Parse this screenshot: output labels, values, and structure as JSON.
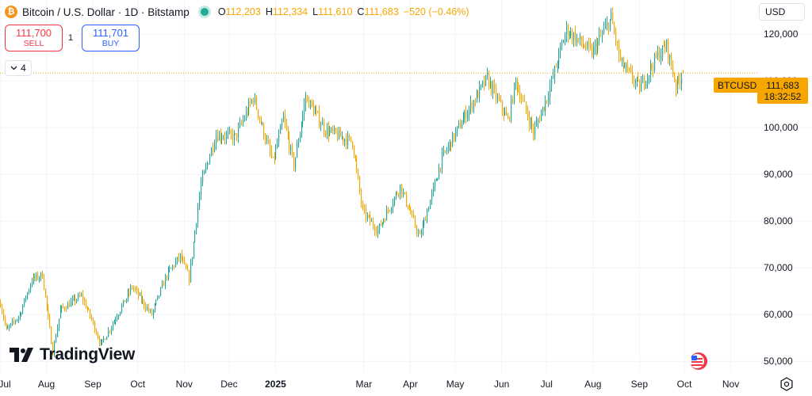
{
  "header": {
    "title": "Bitcoin / U.S. Dollar · 1D · Bitstamp",
    "ohlc": [
      {
        "key": "O",
        "value": "112,203"
      },
      {
        "key": "H",
        "value": "112,334"
      },
      {
        "key": "L",
        "value": "111,610"
      },
      {
        "key": "C",
        "value": "111,683"
      },
      {
        "key": "",
        "value": "−520 (−0.46%)"
      }
    ]
  },
  "trade": {
    "sell_price": "111,700",
    "sell_label": "SELL",
    "spread": "1",
    "buy_price": "111,701",
    "buy_label": "BUY"
  },
  "indicators_count": "4",
  "currency": "USD",
  "last_price": {
    "symbol": "BTCUSD",
    "price": "111,683",
    "countdown": "18:32:52"
  },
  "branding": {
    "logo_text": "TradingView"
  },
  "colors": {
    "up": "#26a69a",
    "down": "#f7a600",
    "accent": "#f7a600",
    "buy": "#2962ff",
    "sell": "#f23645"
  },
  "icons": [
    "bitcoin-icon",
    "live-status-icon",
    "chevron-down-icon",
    "us-flag-icon",
    "settings-icon"
  ],
  "chart_data": {
    "type": "candlestick",
    "interval": "1D",
    "y_ticks": [
      50000,
      60000,
      70000,
      80000,
      90000,
      100000,
      110000,
      120000
    ],
    "y_tick_labels": [
      "50,000",
      "60,000",
      "70,000",
      "80,000",
      "90,000",
      "100,000",
      "110,000",
      "120,000"
    ],
    "ylim": [
      48000,
      127000
    ],
    "x_tick_labels": [
      "Jul",
      "Aug",
      "Sep",
      "Oct",
      "Nov",
      "Dec",
      "2025",
      "Mar",
      "Apr",
      "May",
      "Jun",
      "Jul",
      "Aug",
      "Sep",
      "Oct",
      "Nov"
    ],
    "x_tick_dates": [
      "2024-07-01",
      "2024-08-01",
      "2024-09-01",
      "2024-10-01",
      "2024-11-01",
      "2024-12-01",
      "2025-01-01",
      "2025-03-01",
      "2025-04-01",
      "2025-05-01",
      "2025-06-01",
      "2025-07-01",
      "2025-08-01",
      "2025-09-01",
      "2025-10-01",
      "2025-11-01"
    ],
    "xlim": [
      "2024-07-01",
      "2025-11-15"
    ],
    "anchors": [
      [
        "2024-07-01",
        62500
      ],
      [
        "2024-07-05",
        56500
      ],
      [
        "2024-07-14",
        60000
      ],
      [
        "2024-07-22",
        67500
      ],
      [
        "2024-07-29",
        68500
      ],
      [
        "2024-08-05",
        52000
      ],
      [
        "2024-08-10",
        61000
      ],
      [
        "2024-08-24",
        64000
      ],
      [
        "2024-08-31",
        59000
      ],
      [
        "2024-09-06",
        53500
      ],
      [
        "2024-09-18",
        60500
      ],
      [
        "2024-09-27",
        66000
      ],
      [
        "2024-10-10",
        60000
      ],
      [
        "2024-10-20",
        68500
      ],
      [
        "2024-10-29",
        72500
      ],
      [
        "2024-11-04",
        67800
      ],
      [
        "2024-11-12",
        88000
      ],
      [
        "2024-11-22",
        98500
      ],
      [
        "2024-12-05",
        98000
      ],
      [
        "2024-12-17",
        106500
      ],
      [
        "2024-12-30",
        92500
      ],
      [
        "2025-01-06",
        102000
      ],
      [
        "2025-01-13",
        92000
      ],
      [
        "2025-01-21",
        106500
      ],
      [
        "2025-02-03",
        99500
      ],
      [
        "2025-02-21",
        97000
      ],
      [
        "2025-02-28",
        82000
      ],
      [
        "2025-03-10",
        78000
      ],
      [
        "2025-03-25",
        87500
      ],
      [
        "2025-04-07",
        76500
      ],
      [
        "2025-04-22",
        93500
      ],
      [
        "2025-05-08",
        103000
      ],
      [
        "2025-05-22",
        110500
      ],
      [
        "2025-06-05",
        101500
      ],
      [
        "2025-06-10",
        110000
      ],
      [
        "2025-06-22",
        99000
      ],
      [
        "2025-07-01",
        106500
      ],
      [
        "2025-07-14",
        121000
      ],
      [
        "2025-07-31",
        116000
      ],
      [
        "2025-08-13",
        123500
      ],
      [
        "2025-08-19",
        114000
      ],
      [
        "2025-09-01",
        108500
      ],
      [
        "2025-09-13",
        115500
      ],
      [
        "2025-09-19",
        117500
      ],
      [
        "2025-09-25",
        109000
      ],
      [
        "2025-09-30",
        111683
      ]
    ],
    "last": {
      "date": "2025-09-30",
      "open": 112203,
      "high": 112334,
      "low": 111610,
      "close": 111683
    }
  }
}
